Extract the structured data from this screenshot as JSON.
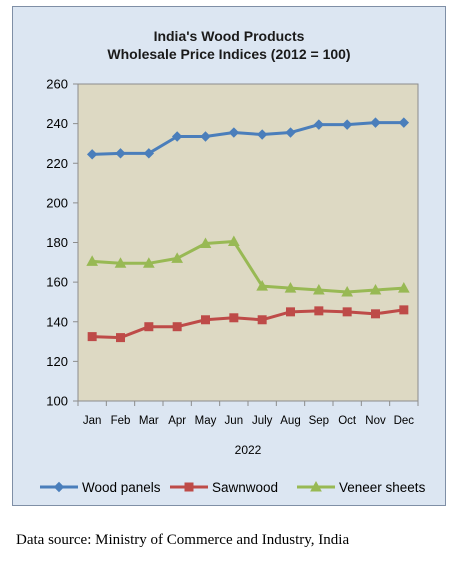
{
  "title_line1": "India's Wood Products",
  "title_line2": "Wholesale Price Indices (2012 = 100)",
  "source": "Data source: Ministry of Commerce and Industry, India",
  "chart_data": {
    "type": "line",
    "categories": [
      "Jan",
      "Feb",
      "Mar",
      "Apr",
      "May",
      "Jun",
      "July",
      "Aug",
      "Sep",
      "Oct",
      "Nov",
      "Dec"
    ],
    "xlabel": "2022",
    "ylabel": "",
    "ylim": [
      100,
      260
    ],
    "yticks": [
      100,
      120,
      140,
      160,
      180,
      200,
      220,
      240,
      260
    ],
    "grid": false,
    "legend": "bottom",
    "plot_background": "#ddd9c3",
    "series": [
      {
        "name": "Wood panels",
        "color": "#4a7ebb",
        "marker": "diamond",
        "values": [
          224.5,
          225,
          225,
          233.5,
          233.5,
          235.5,
          234.5,
          235.5,
          239.5,
          239.5,
          240.5,
          240.5
        ]
      },
      {
        "name": "Sawnwood",
        "color": "#be4b48",
        "marker": "square",
        "values": [
          132.5,
          132,
          137.5,
          137.5,
          141,
          142,
          141,
          145,
          145.5,
          145,
          144,
          146
        ]
      },
      {
        "name": "Veneer sheets",
        "color": "#98b954",
        "marker": "triangle",
        "values": [
          170.5,
          169.5,
          169.5,
          172,
          179.5,
          180.5,
          158,
          157,
          156,
          155,
          156,
          157
        ]
      }
    ]
  }
}
